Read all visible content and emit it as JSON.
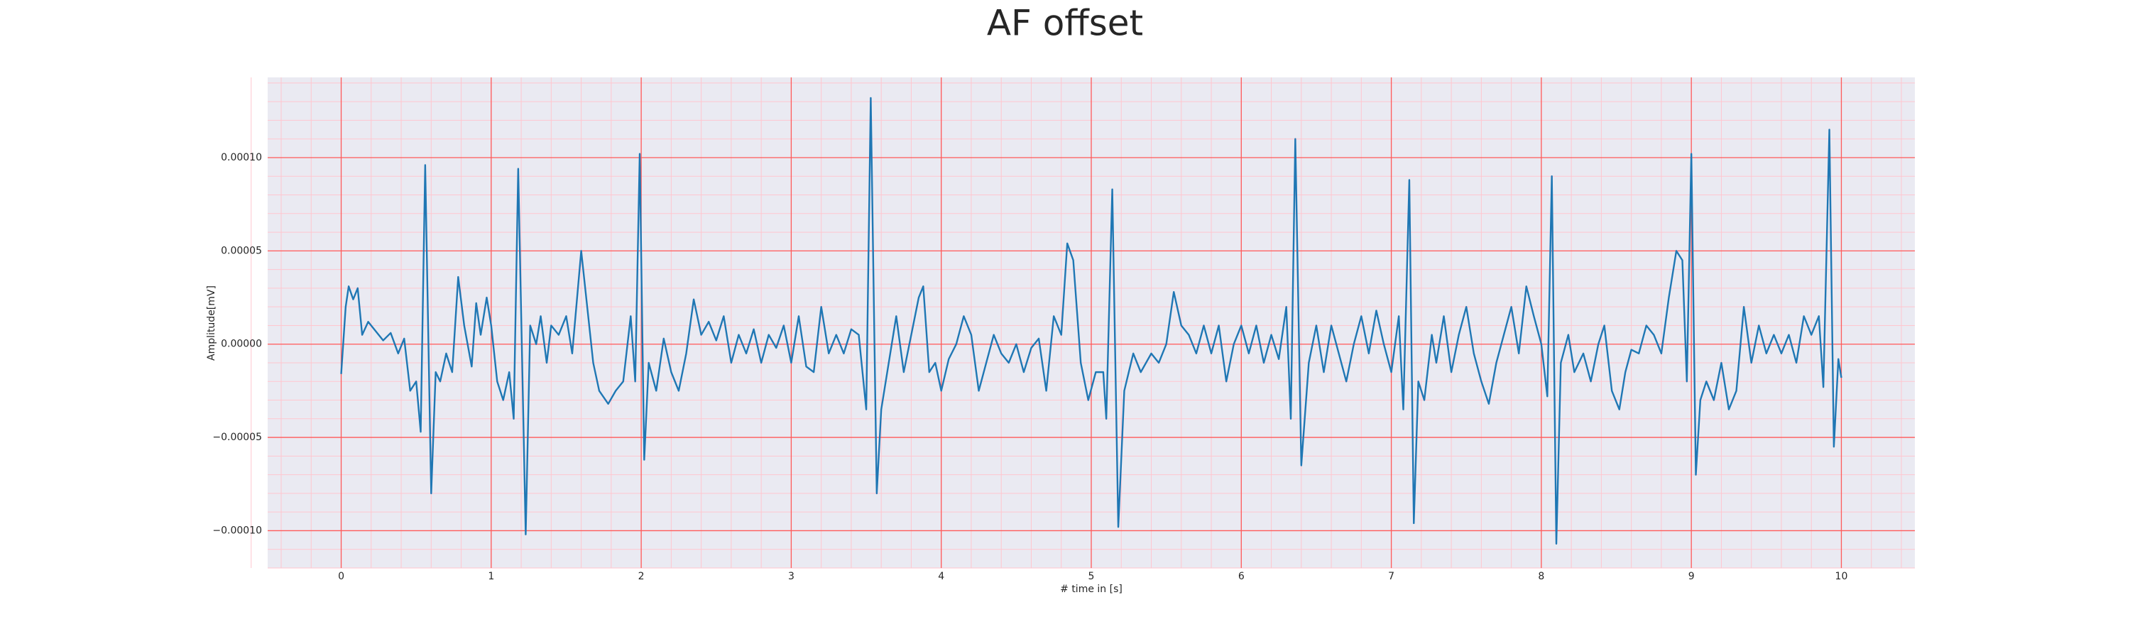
{
  "chart_data": {
    "type": "line",
    "title": "AF offset",
    "xlabel": "# time in [s]",
    "ylabel": "Amplitude[mV]",
    "color": "#1f77b4",
    "grid": true,
    "grid_color": "#ff5a5a",
    "minor_grid": true,
    "xlim": [
      -0.49,
      10.49
    ],
    "ylim": [
      -0.00012,
      0.000143
    ],
    "xticks": [
      0,
      1,
      2,
      3,
      4,
      5,
      6,
      7,
      8,
      9,
      10
    ],
    "yticks": [
      {
        "value": 0.0001,
        "label": "0.00010"
      },
      {
        "value": 5e-05,
        "label": "0.00005"
      },
      {
        "value": 0,
        "label": "0.00000"
      },
      {
        "value": -5e-05,
        "label": "−0.00005"
      },
      {
        "value": -0.0001,
        "label": "−0.00010"
      }
    ],
    "x": [
      0,
      0.03,
      0.05,
      0.08,
      0.11,
      0.14,
      0.18,
      0.22,
      0.28,
      0.33,
      0.38,
      0.42,
      0.46,
      0.5,
      0.53,
      0.56,
      0.6,
      0.63,
      0.66,
      0.7,
      0.74,
      0.78,
      0.82,
      0.87,
      0.9,
      0.93,
      0.97,
      1.0,
      1.04,
      1.08,
      1.12,
      1.15,
      1.18,
      1.23,
      1.26,
      1.3,
      1.33,
      1.37,
      1.4,
      1.45,
      1.5,
      1.54,
      1.6,
      1.64,
      1.68,
      1.72,
      1.78,
      1.83,
      1.88,
      1.93,
      1.96,
      1.99,
      2.02,
      2.05,
      2.1,
      2.15,
      2.2,
      2.25,
      2.3,
      2.35,
      2.4,
      2.45,
      2.5,
      2.55,
      2.6,
      2.65,
      2.7,
      2.75,
      2.8,
      2.85,
      2.9,
      2.95,
      3.0,
      3.05,
      3.1,
      3.15,
      3.2,
      3.25,
      3.3,
      3.35,
      3.4,
      3.45,
      3.5,
      3.53,
      3.57,
      3.6,
      3.65,
      3.7,
      3.75,
      3.8,
      3.85,
      3.88,
      3.92,
      3.96,
      4.0,
      4.05,
      4.1,
      4.15,
      4.2,
      4.25,
      4.3,
      4.35,
      4.4,
      4.45,
      4.5,
      4.55,
      4.6,
      4.65,
      4.7,
      4.75,
      4.8,
      4.84,
      4.88,
      4.93,
      4.98,
      5.03,
      5.08,
      5.1,
      5.14,
      5.18,
      5.22,
      5.28,
      5.33,
      5.4,
      5.45,
      5.5,
      5.55,
      5.6,
      5.65,
      5.7,
      5.75,
      5.8,
      5.85,
      5.9,
      5.95,
      6.0,
      6.05,
      6.1,
      6.15,
      6.2,
      6.25,
      6.3,
      6.33,
      6.36,
      6.4,
      6.45,
      6.5,
      6.55,
      6.6,
      6.65,
      6.7,
      6.75,
      6.8,
      6.85,
      6.9,
      6.95,
      7.0,
      7.05,
      7.08,
      7.12,
      7.15,
      7.18,
      7.22,
      7.27,
      7.3,
      7.35,
      7.4,
      7.45,
      7.5,
      7.55,
      7.6,
      7.65,
      7.7,
      7.75,
      7.8,
      7.85,
      7.9,
      7.95,
      8.0,
      8.04,
      8.07,
      8.1,
      8.13,
      8.18,
      8.22,
      8.28,
      8.33,
      8.38,
      8.42,
      8.47,
      8.52,
      8.56,
      8.6,
      8.65,
      8.7,
      8.75,
      8.8,
      8.85,
      8.9,
      8.94,
      8.97,
      9.0,
      9.03,
      9.06,
      9.1,
      9.15,
      9.2,
      9.25,
      9.3,
      9.35,
      9.4,
      9.45,
      9.5,
      9.55,
      9.6,
      9.65,
      9.7,
      9.75,
      9.8,
      9.85,
      9.88,
      9.92,
      9.95,
      9.98,
      10.0
    ],
    "values": [
      -1.6e-05,
      2e-05,
      3.1e-05,
      2.4e-05,
      3e-05,
      5e-06,
      1.2e-05,
      8e-06,
      2e-06,
      6e-06,
      -5e-06,
      3e-06,
      -2.5e-05,
      -2e-05,
      -4.7e-05,
      9.6e-05,
      -8e-05,
      -1.5e-05,
      -2e-05,
      -5e-06,
      -1.5e-05,
      3.6e-05,
      1e-05,
      -1.2e-05,
      2.2e-05,
      5e-06,
      2.5e-05,
      1e-05,
      -2e-05,
      -3e-05,
      -1.5e-05,
      -4e-05,
      9.4e-05,
      -0.000102,
      1e-05,
      0,
      1.5e-05,
      -1e-05,
      1e-05,
      5e-06,
      1.5e-05,
      -5e-06,
      5e-05,
      2e-05,
      -1e-05,
      -2.5e-05,
      -3.2e-05,
      -2.5e-05,
      -2e-05,
      1.5e-05,
      -2e-05,
      0.000102,
      -6.2e-05,
      -1e-05,
      -2.5e-05,
      3e-06,
      -1.5e-05,
      -2.5e-05,
      -5e-06,
      2.4e-05,
      5e-06,
      1.2e-05,
      2e-06,
      1.5e-05,
      -1e-05,
      5e-06,
      -5e-06,
      8e-06,
      -1e-05,
      5e-06,
      -2e-06,
      1e-05,
      -1e-05,
      1.5e-05,
      -1.2e-05,
      -1.5e-05,
      2e-05,
      -5e-06,
      5e-06,
      -5e-06,
      8e-06,
      5e-06,
      -3.5e-05,
      0.000132,
      -8e-05,
      -3.5e-05,
      -1e-05,
      1.5e-05,
      -1.5e-05,
      5e-06,
      2.5e-05,
      3.1e-05,
      -1.5e-05,
      -1e-05,
      -2.5e-05,
      -8e-06,
      0,
      1.5e-05,
      5e-06,
      -2.5e-05,
      -1e-05,
      5e-06,
      -5e-06,
      -1e-05,
      0,
      -1.5e-05,
      -2e-06,
      3e-06,
      -2.5e-05,
      1.5e-05,
      5e-06,
      5.4e-05,
      4.5e-05,
      -1e-05,
      -3e-05,
      -1.5e-05,
      -1.5e-05,
      -4e-05,
      8.3e-05,
      -9.8e-05,
      -2.5e-05,
      -5e-06,
      -1.5e-05,
      -5e-06,
      -1e-05,
      0,
      2.8e-05,
      1e-05,
      5e-06,
      -5e-06,
      1e-05,
      -5e-06,
      1e-05,
      -2e-05,
      0,
      1e-05,
      -5e-06,
      1e-05,
      -1e-05,
      5e-06,
      -8e-06,
      2e-05,
      -4e-05,
      0.00011,
      -6.5e-05,
      -1e-05,
      1e-05,
      -1.5e-05,
      1e-05,
      -5e-06,
      -2e-05,
      0,
      1.5e-05,
      -5e-06,
      1.8e-05,
      0,
      -1.5e-05,
      1.5e-05,
      -3.5e-05,
      8.8e-05,
      -9.6e-05,
      -2e-05,
      -3e-05,
      5e-06,
      -1e-05,
      1.5e-05,
      -1.5e-05,
      5e-06,
      2e-05,
      -5e-06,
      -2e-05,
      -3.2e-05,
      -1e-05,
      5e-06,
      2e-05,
      -5e-06,
      3.1e-05,
      1.5e-05,
      0,
      -2.8e-05,
      9e-05,
      -0.000107,
      -1e-05,
      5e-06,
      -1.5e-05,
      -5e-06,
      -2e-05,
      0,
      1e-05,
      -2.5e-05,
      -3.5e-05,
      -1.5e-05,
      -3e-06,
      -5e-06,
      1e-05,
      5e-06,
      -5e-06,
      2.5e-05,
      5e-05,
      4.5e-05,
      -2e-05,
      0.000102,
      -7e-05,
      -3e-05,
      -2e-05,
      -3e-05,
      -1e-05,
      -3.5e-05,
      -2.5e-05,
      2e-05,
      -1e-05,
      1e-05,
      -5e-06,
      5e-06,
      -5e-06,
      5e-06,
      -1e-05,
      1.5e-05,
      5e-06,
      1.5e-05,
      -2.3e-05,
      0.000115,
      -5.5e-05,
      -8e-06,
      -1.8e-05
    ]
  }
}
